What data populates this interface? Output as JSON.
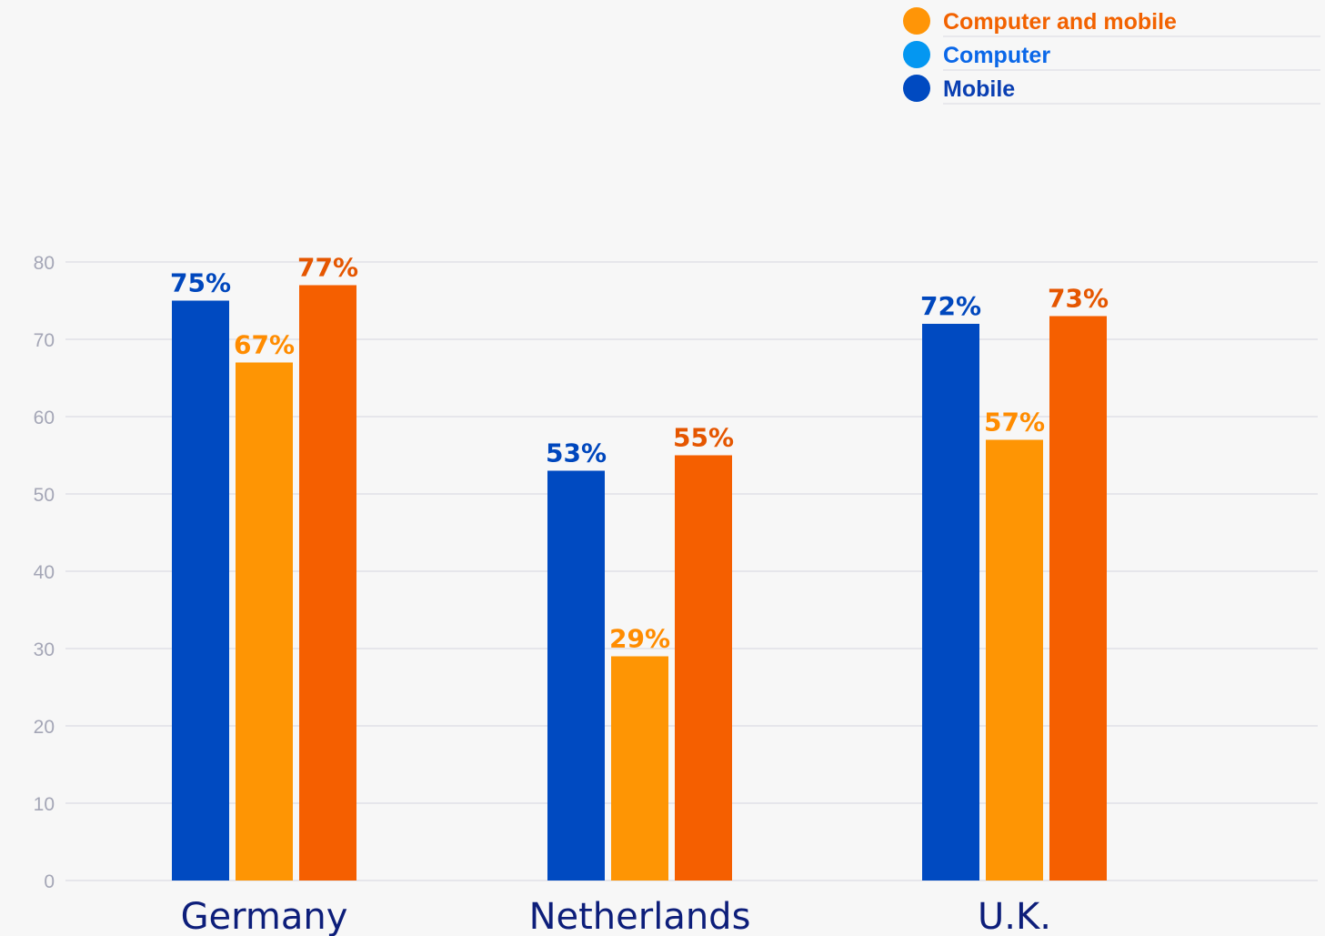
{
  "chart_data": {
    "type": "bar",
    "title": "",
    "xlabel": "",
    "ylabel": "",
    "ylim": [
      0,
      80
    ],
    "yticks": [
      0,
      10,
      20,
      30,
      40,
      50,
      60,
      70,
      80
    ],
    "grid": true,
    "legend_position": "top-right",
    "categories": [
      "Germany",
      "Netherlands",
      "U.K."
    ],
    "series": [
      {
        "name": "Mobile",
        "values": [
          75,
          53,
          72
        ],
        "labels": [
          "75%",
          "53%",
          "72%"
        ],
        "color": "#004ac1",
        "label_color": "#0047bd"
      },
      {
        "name": "Computer",
        "values": [
          67,
          29,
          57
        ],
        "labels": [
          "67%",
          "29%",
          "57%"
        ],
        "color": "#fe9504",
        "label_color": "#ff8c00"
      },
      {
        "name": "Computer and mobile",
        "values": [
          77,
          55,
          73
        ],
        "labels": [
          "77%",
          "55%",
          "73%"
        ],
        "color": "#f55f00",
        "label_color": "#e55600"
      }
    ],
    "legend": [
      {
        "name": "Computer and mobile",
        "marker_color": "#ff9507",
        "text_color": "#f26200"
      },
      {
        "name": "Computer",
        "marker_color": "#0497f1",
        "text_color": "#0a67e8"
      },
      {
        "name": "Mobile",
        "marker_color": "#004ac1",
        "text_color": "#0a3fb2"
      }
    ]
  }
}
